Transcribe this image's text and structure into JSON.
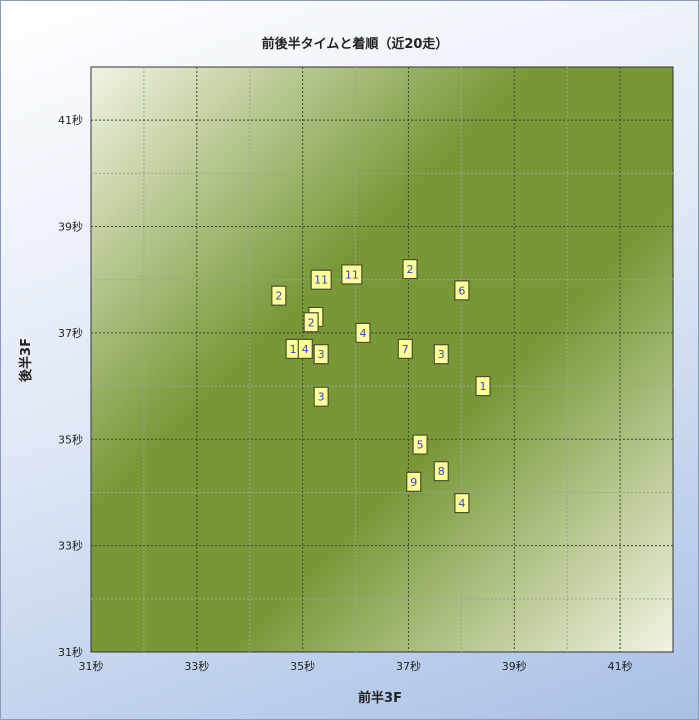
{
  "chart_data": {
    "type": "scatter",
    "title": "前後半タイムと着順（近20走）",
    "xlabel": "前半3F",
    "ylabel": "後半3F",
    "xlim": [
      31,
      42
    ],
    "ylim": [
      31,
      42
    ],
    "x_ticks": [
      31,
      33,
      35,
      37,
      39,
      41
    ],
    "y_ticks": [
      31,
      33,
      35,
      37,
      39,
      41
    ],
    "x_tick_labels": [
      "31秒",
      "33秒",
      "35秒",
      "37秒",
      "39秒",
      "41秒"
    ],
    "y_tick_labels": [
      "31秒",
      "33秒",
      "35秒",
      "37秒",
      "39秒",
      "41秒"
    ],
    "grid": true,
    "colors": {
      "band_dark": "#789838",
      "band_light": "#f2f4e4",
      "marker_fill": "#ffff99",
      "label": "#3344cc"
    },
    "points": [
      {
        "x": 34.55,
        "y": 37.7,
        "label": "2"
      },
      {
        "x": 35.35,
        "y": 38.0,
        "label": "11"
      },
      {
        "x": 35.93,
        "y": 38.1,
        "label": "11"
      },
      {
        "x": 37.03,
        "y": 38.2,
        "label": "2"
      },
      {
        "x": 38.01,
        "y": 37.8,
        "label": "6"
      },
      {
        "x": 35.25,
        "y": 37.3,
        "label": ""
      },
      {
        "x": 35.16,
        "y": 37.2,
        "label": "2"
      },
      {
        "x": 36.14,
        "y": 37.0,
        "label": "4"
      },
      {
        "x": 34.82,
        "y": 36.7,
        "label": "1"
      },
      {
        "x": 35.05,
        "y": 36.7,
        "label": "4"
      },
      {
        "x": 35.35,
        "y": 36.6,
        "label": "3"
      },
      {
        "x": 36.94,
        "y": 36.7,
        "label": "7"
      },
      {
        "x": 37.62,
        "y": 36.6,
        "label": "3"
      },
      {
        "x": 38.41,
        "y": 36.0,
        "label": "1"
      },
      {
        "x": 35.35,
        "y": 35.8,
        "label": "3"
      },
      {
        "x": 37.22,
        "y": 34.9,
        "label": "5"
      },
      {
        "x": 37.62,
        "y": 34.4,
        "label": "8"
      },
      {
        "x": 37.1,
        "y": 34.2,
        "label": "9"
      },
      {
        "x": 38.01,
        "y": 33.8,
        "label": "4"
      }
    ]
  }
}
